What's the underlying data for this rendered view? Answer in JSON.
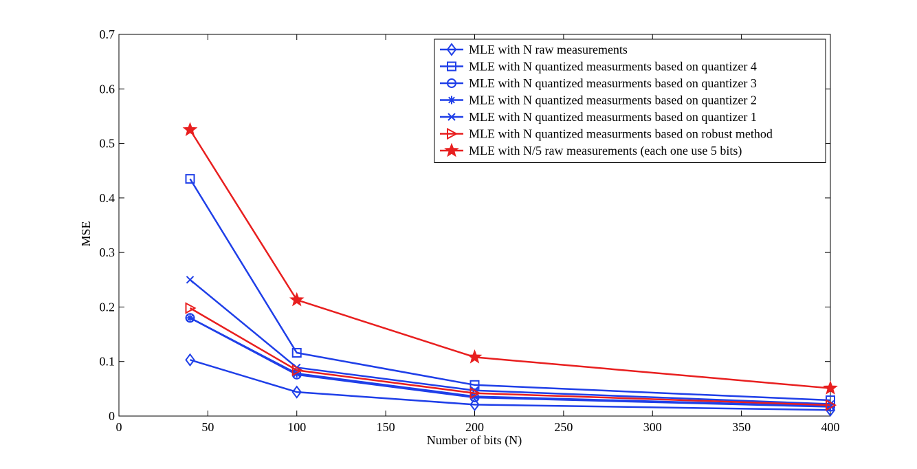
{
  "chart_data": {
    "type": "line",
    "title": "",
    "xlabel": "Number of bits (N)",
    "ylabel": "MSE",
    "xlim": [
      0,
      400
    ],
    "ylim": [
      0,
      0.7
    ],
    "xticks": [
      0,
      50,
      100,
      150,
      200,
      250,
      300,
      350,
      400
    ],
    "yticks": [
      0,
      0.1,
      0.2,
      0.3,
      0.4,
      0.5,
      0.6,
      0.7
    ],
    "xtick_labels": [
      "0",
      "50",
      "100",
      "150",
      "200",
      "250",
      "300",
      "350",
      "400"
    ],
    "ytick_labels": [
      "0",
      "0.1",
      "0.2",
      "0.3",
      "0.4",
      "0.5",
      "0.6",
      "0.7"
    ],
    "grid": false,
    "legend_position": "top-right",
    "x": [
      40,
      100,
      200,
      400
    ],
    "series": [
      {
        "name": "MLE with N raw measurements",
        "values": [
          0.103,
          0.044,
          0.021,
          0.011
        ],
        "color": "#1f3fe8",
        "marker": "diamond"
      },
      {
        "name": "MLE with N quantized measurments based on quantizer 4",
        "values": [
          0.435,
          0.116,
          0.057,
          0.029
        ],
        "color": "#1f3fe8",
        "marker": "square"
      },
      {
        "name": "MLE with N quantized measurments based on quantizer 3",
        "values": [
          0.18,
          0.076,
          0.034,
          0.017
        ],
        "color": "#1f3fe8",
        "marker": "circle"
      },
      {
        "name": "MLE with N quantized measurments based on quantizer 2",
        "values": [
          0.18,
          0.078,
          0.036,
          0.018
        ],
        "color": "#1f3fe8",
        "marker": "asterisk"
      },
      {
        "name": "MLE with N quantized measurments based on quantizer 1",
        "values": [
          0.25,
          0.089,
          0.047,
          0.022
        ],
        "color": "#1f3fe8",
        "marker": "x"
      },
      {
        "name": "MLE with N quantized measurments based on robust method",
        "values": [
          0.198,
          0.084,
          0.042,
          0.02
        ],
        "color": "#e81f1f",
        "marker": "triangle-right"
      },
      {
        "name": "MLE with N/5 raw measurements (each one use 5 bits)",
        "values": [
          0.525,
          0.213,
          0.108,
          0.051
        ],
        "color": "#e81f1f",
        "marker": "star"
      }
    ]
  }
}
